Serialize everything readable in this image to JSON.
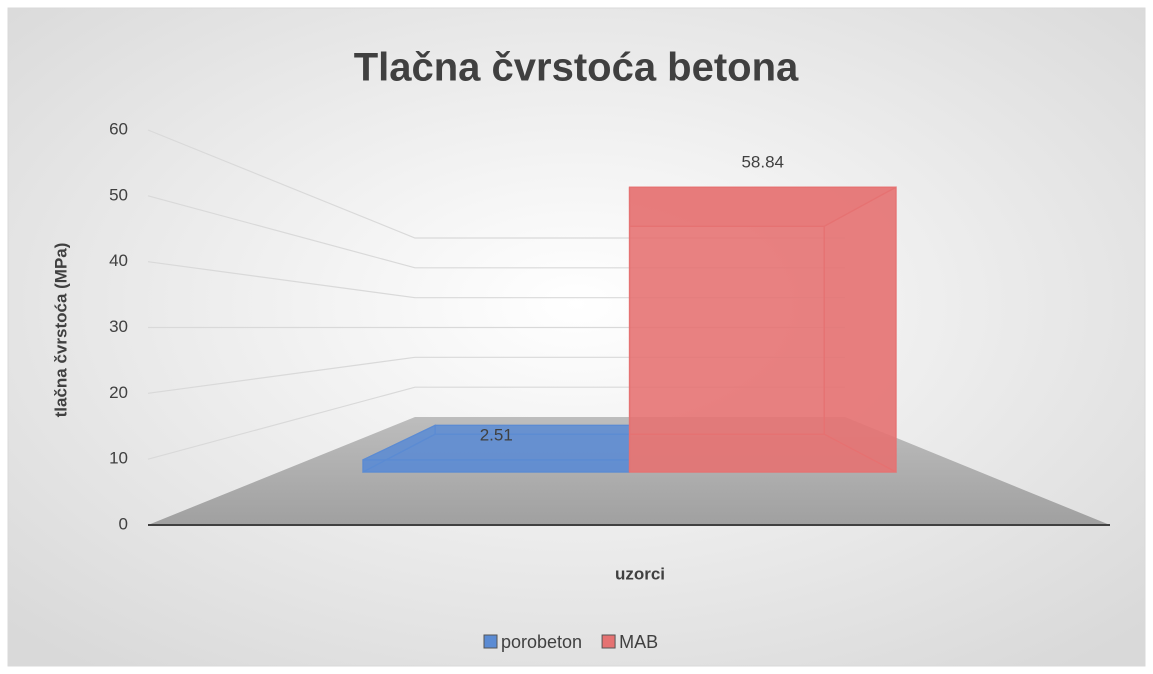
{
  "chart_data": {
    "type": "bar3d",
    "title": "Tlačna čvrstoća betona",
    "ylabel": "tlačna čvrstoća (MPa)",
    "xlabel": "uzorci",
    "categories": [
      null
    ],
    "series": [
      {
        "name": "porobeton",
        "color": "#5b8bd3",
        "values": [
          2.51
        ]
      },
      {
        "name": "MAB",
        "color": "#e57272",
        "values": [
          58.84
        ]
      }
    ],
    "ylim": [
      0,
      60
    ],
    "yticks": [
      0,
      10,
      20,
      30,
      40,
      50,
      60
    ],
    "grid": true,
    "legend": "bottom"
  }
}
